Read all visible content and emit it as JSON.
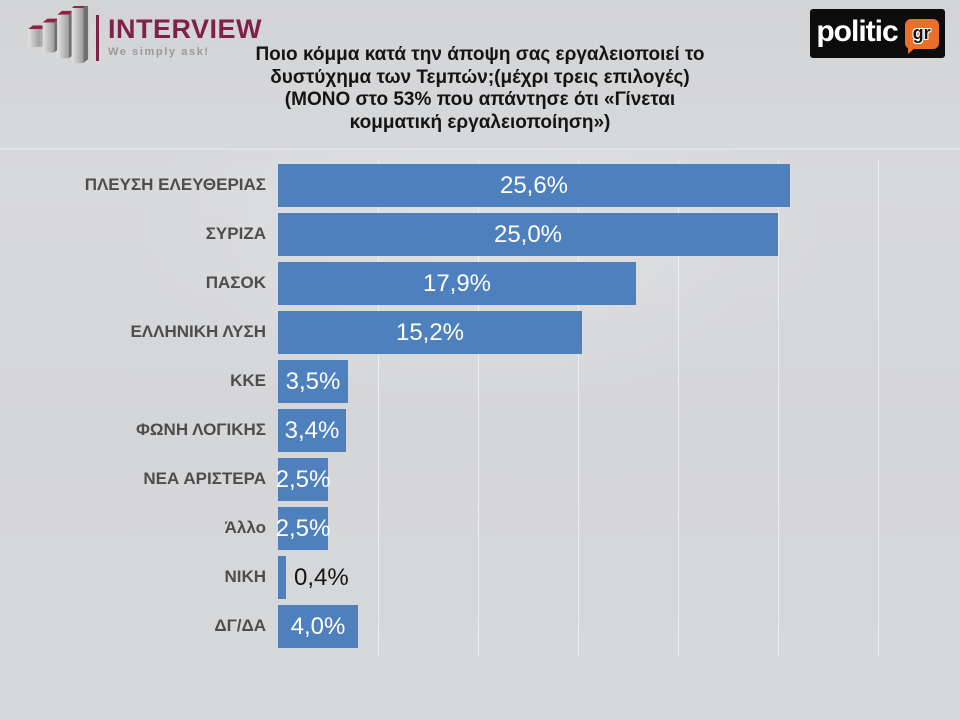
{
  "header": {
    "interview_logo": {
      "name": "INTERVIEW",
      "tagline": "We simply ask!"
    },
    "politic_logo": {
      "text": "politic",
      "badge": "gr"
    },
    "title": "Ποιο κόμμα κατά την άποψη σας εργαλειοποιεί το\nδυστύχημα των Τεμπών;(μέχρι τρεις επιλογές)\n(ΜΟΝΟ στο 53% που απάντησε ότι «Γίνεται\nκομματική εργαλειοποίηση»)"
  },
  "chart_data": {
    "type": "bar",
    "orientation": "horizontal",
    "title": "Ποιο κόμμα κατά την άποψη σας εργαλειοποιεί το δυστύχημα των Τεμπών;(μέχρι τρεις επιλογές) (ΜΟΝΟ στο 53% που απάντησε ότι «Γίνεται κομματική εργαλειοποίηση»)",
    "categories": [
      "ΠΛΕΥΣΗ ΕΛΕΥΘΕΡΙΑΣ",
      "ΣΥΡΙΖΑ",
      "ΠΑΣΟΚ",
      "ΕΛΛΗΝΙΚΗ ΛΥΣΗ",
      "ΚΚΕ",
      "ΦΩΝΗ ΛΟΓΙΚΗΣ",
      "ΝΕΑ ΑΡΙΣΤΕΡΑ",
      "Άλλο",
      "ΝΙΚΗ",
      "ΔΓ/ΔΑ"
    ],
    "values": [
      25.6,
      25.0,
      17.9,
      15.2,
      3.5,
      3.4,
      2.5,
      2.5,
      0.4,
      4.0
    ],
    "value_labels": [
      "25,6%",
      "25,0%",
      "17,9%",
      "15,2%",
      "3,5%",
      "3,4%",
      "2,5%",
      "2,5%",
      "0,4%",
      "4,0%"
    ],
    "xlim": [
      0,
      32
    ],
    "gridline_every_percent": 5,
    "grid": "vertical-faint-white",
    "legend": "none",
    "bar_color": "#4e80be",
    "value_label_color_inside": "#ffffff",
    "value_label_color_outside": "#141414",
    "category_label_color": "#4d4d4d"
  }
}
